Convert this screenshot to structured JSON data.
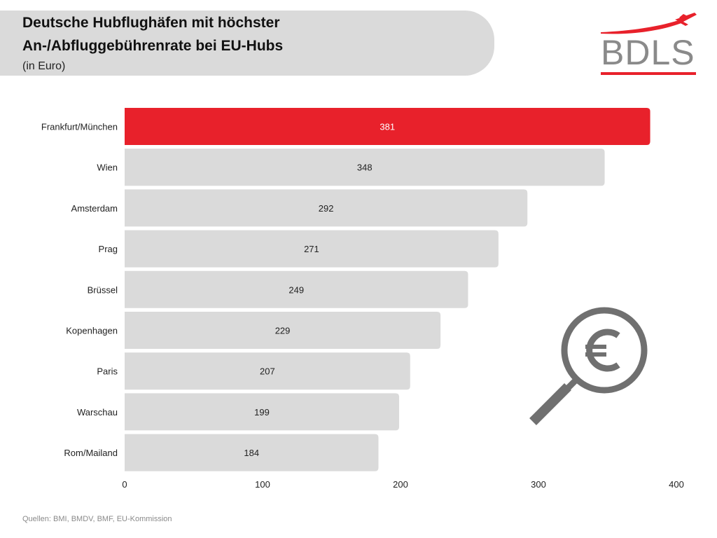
{
  "header": {
    "title_line1": "Deutsche Hubflughäfen mit höchster",
    "title_line2": "An-/Abfluggebührenrate bei EU-Hubs",
    "subtitle": "(in Euro)"
  },
  "logo": {
    "text": "BDLS",
    "icon": "airplane-icon"
  },
  "decoration": {
    "icon": "magnifier-euro-icon"
  },
  "footer": {
    "source": "Quellen: BMI, BMDV, BMF, EU-Kommission"
  },
  "colors": {
    "highlight": "#e8212b",
    "bar": "#dadada",
    "icon": "#707070"
  },
  "chart_data": {
    "type": "bar",
    "orientation": "horizontal",
    "title": "Deutsche Hubflughäfen mit höchster An-/Abfluggebührenrate bei EU-Hubs",
    "subtitle": "(in Euro)",
    "categories": [
      "Frankfurt/München",
      "Wien",
      "Amsterdam",
      "Prag",
      "Brüssel",
      "Kopenhagen",
      "Paris",
      "Warschau",
      "Rom/Mailand"
    ],
    "values": [
      381,
      348,
      292,
      271,
      249,
      229,
      207,
      199,
      184
    ],
    "highlight_index": 0,
    "xlim": [
      0,
      400
    ],
    "xticks": [
      0,
      100,
      200,
      300,
      400
    ],
    "grid": false,
    "data_labels": true
  }
}
